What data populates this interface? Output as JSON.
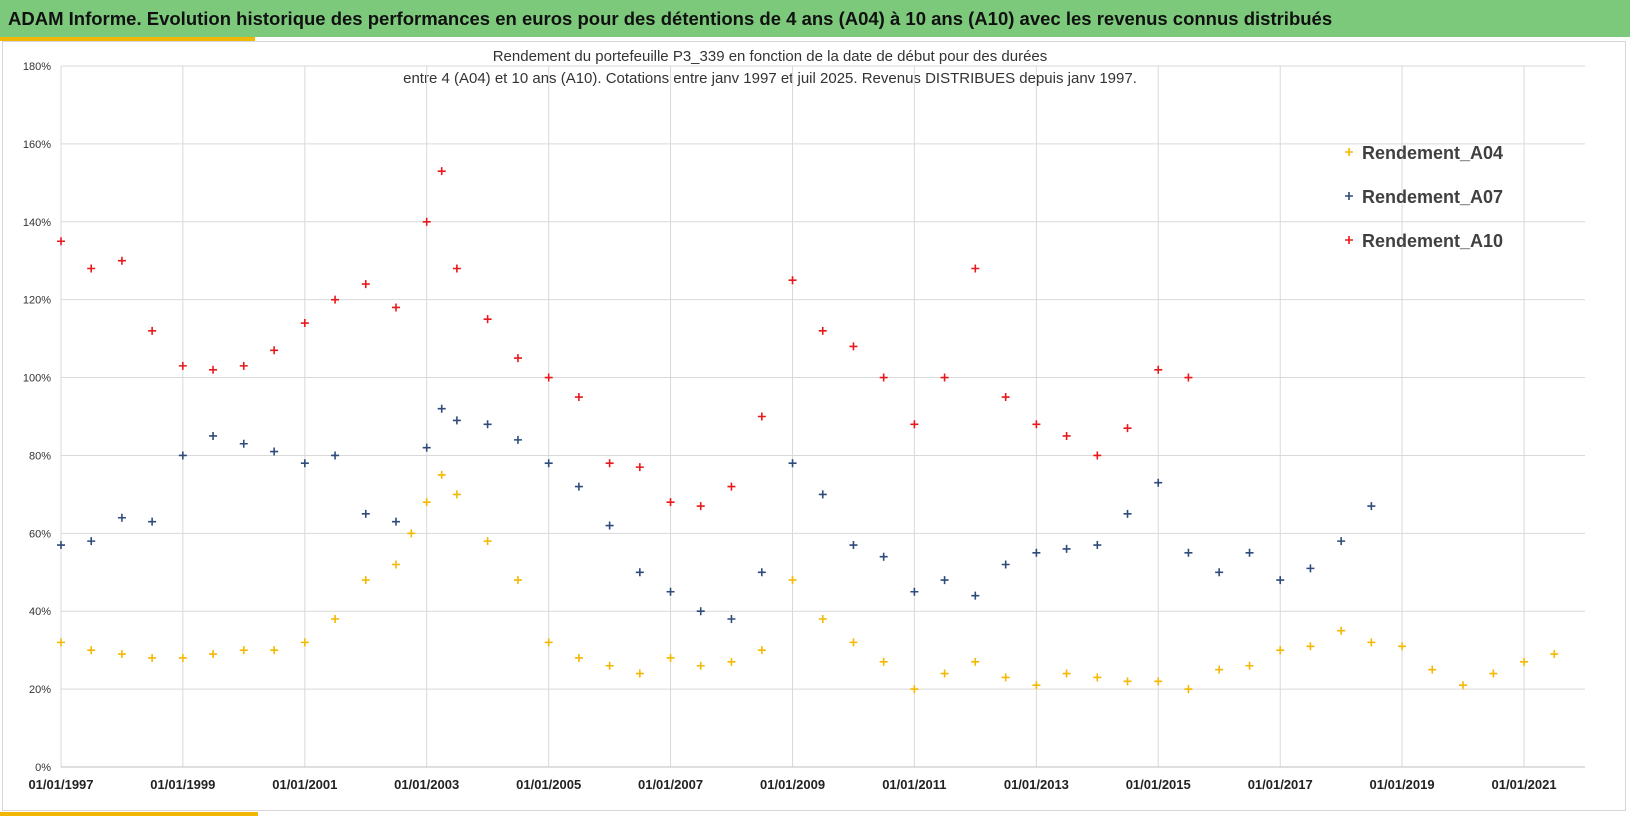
{
  "banner": {
    "title": "ADAM Informe. Evolution historique des performances en euros pour des détentions de 4 ans (A04) à 10 ans (A10) avec les revenus connus distribués"
  },
  "colors": {
    "banner_bg": "#7dc97c",
    "accent": "#f2b705",
    "a04": "#f5b800",
    "a07": "#2f4b7c",
    "a10": "#e8191b"
  },
  "chart_data": {
    "type": "scatter",
    "title_line1": "Rendement du portefeuille P3_339 en fonction de la date de début pour des durées",
    "title_line2": "entre 4 (A04) et 10 ans (A10). Cotations entre janv 1997 et juil 2025. Revenus DISTRIBUES depuis janv 1997.",
    "xlabel": "",
    "ylabel": "",
    "x_type": "date",
    "xlim": [
      "1997-01-01",
      "2022-01-01"
    ],
    "ylim": [
      0,
      180
    ],
    "y_unit": "%",
    "grid": true,
    "marker": "+",
    "legend_position": "top-right",
    "y_ticks": [
      0,
      20,
      40,
      60,
      80,
      100,
      120,
      140,
      160,
      180
    ],
    "y_tick_labels": [
      "0%",
      "20%",
      "40%",
      "60%",
      "80%",
      "100%",
      "120%",
      "140%",
      "160%",
      "180%"
    ],
    "x_ticks": [
      "1997-01-01",
      "1999-01-01",
      "2001-01-01",
      "2003-01-01",
      "2005-01-01",
      "2007-01-01",
      "2009-01-01",
      "2011-01-01",
      "2013-01-01",
      "2015-01-01",
      "2017-01-01",
      "2019-01-01",
      "2021-01-01"
    ],
    "x_tick_labels": [
      "01/01/1997",
      "01/01/1999",
      "01/01/2001",
      "01/01/2003",
      "01/01/2005",
      "01/01/2007",
      "01/01/2009",
      "01/01/2011",
      "01/01/2013",
      "01/01/2015",
      "01/01/2017",
      "01/01/2019",
      "01/01/2021"
    ],
    "series": [
      {
        "name": "Rendement_A04",
        "color": "#f5b800",
        "points": [
          [
            "1997-01-01",
            32
          ],
          [
            "1997-07-01",
            30
          ],
          [
            "1998-01-01",
            29
          ],
          [
            "1998-07-01",
            28
          ],
          [
            "1999-01-01",
            28
          ],
          [
            "1999-07-01",
            29
          ],
          [
            "2000-01-01",
            30
          ],
          [
            "2000-07-01",
            30
          ],
          [
            "2001-01-01",
            32
          ],
          [
            "2001-07-01",
            38
          ],
          [
            "2002-01-01",
            48
          ],
          [
            "2002-07-01",
            52
          ],
          [
            "2002-10-01",
            60
          ],
          [
            "2003-01-01",
            68
          ],
          [
            "2003-04-01",
            75
          ],
          [
            "2003-07-01",
            70
          ],
          [
            "2004-01-01",
            58
          ],
          [
            "2004-07-01",
            48
          ],
          [
            "2005-01-01",
            32
          ],
          [
            "2005-07-01",
            28
          ],
          [
            "2006-01-01",
            26
          ],
          [
            "2006-07-01",
            24
          ],
          [
            "2007-01-01",
            28
          ],
          [
            "2007-07-01",
            26
          ],
          [
            "2008-01-01",
            27
          ],
          [
            "2008-07-01",
            30
          ],
          [
            "2009-01-01",
            48
          ],
          [
            "2009-07-01",
            38
          ],
          [
            "2010-01-01",
            32
          ],
          [
            "2010-07-01",
            27
          ],
          [
            "2011-01-01",
            20
          ],
          [
            "2011-07-01",
            24
          ],
          [
            "2012-01-01",
            27
          ],
          [
            "2012-07-01",
            23
          ],
          [
            "2013-01-01",
            21
          ],
          [
            "2013-07-01",
            24
          ],
          [
            "2014-01-01",
            23
          ],
          [
            "2014-07-01",
            22
          ],
          [
            "2015-01-01",
            22
          ],
          [
            "2015-07-01",
            20
          ],
          [
            "2016-01-01",
            25
          ],
          [
            "2016-07-01",
            26
          ],
          [
            "2017-01-01",
            30
          ],
          [
            "2017-07-01",
            31
          ],
          [
            "2018-01-01",
            35
          ],
          [
            "2018-07-01",
            32
          ],
          [
            "2019-01-01",
            31
          ],
          [
            "2019-07-01",
            25
          ],
          [
            "2020-01-01",
            21
          ],
          [
            "2020-07-01",
            24
          ],
          [
            "2021-01-01",
            27
          ],
          [
            "2021-07-01",
            29
          ]
        ]
      },
      {
        "name": "Rendement_A07",
        "color": "#2f4b7c",
        "points": [
          [
            "1997-01-01",
            57
          ],
          [
            "1997-07-01",
            58
          ],
          [
            "1998-01-01",
            64
          ],
          [
            "1998-07-01",
            63
          ],
          [
            "1999-01-01",
            80
          ],
          [
            "1999-07-01",
            85
          ],
          [
            "2000-01-01",
            83
          ],
          [
            "2000-07-01",
            81
          ],
          [
            "2001-01-01",
            78
          ],
          [
            "2001-07-01",
            80
          ],
          [
            "2002-01-01",
            65
          ],
          [
            "2002-07-01",
            63
          ],
          [
            "2003-01-01",
            82
          ],
          [
            "2003-04-01",
            92
          ],
          [
            "2003-07-01",
            89
          ],
          [
            "2004-01-01",
            88
          ],
          [
            "2004-07-01",
            84
          ],
          [
            "2005-01-01",
            78
          ],
          [
            "2005-07-01",
            72
          ],
          [
            "2006-01-01",
            62
          ],
          [
            "2006-07-01",
            50
          ],
          [
            "2007-01-01",
            45
          ],
          [
            "2007-07-01",
            40
          ],
          [
            "2008-01-01",
            38
          ],
          [
            "2008-07-01",
            50
          ],
          [
            "2009-01-01",
            78
          ],
          [
            "2009-07-01",
            70
          ],
          [
            "2010-01-01",
            57
          ],
          [
            "2010-07-01",
            54
          ],
          [
            "2011-01-01",
            45
          ],
          [
            "2011-07-01",
            48
          ],
          [
            "2012-01-01",
            44
          ],
          [
            "2012-07-01",
            52
          ],
          [
            "2013-01-01",
            55
          ],
          [
            "2013-07-01",
            56
          ],
          [
            "2014-01-01",
            57
          ],
          [
            "2014-07-01",
            65
          ],
          [
            "2015-01-01",
            73
          ],
          [
            "2015-07-01",
            55
          ],
          [
            "2016-01-01",
            50
          ],
          [
            "2016-07-01",
            55
          ],
          [
            "2017-01-01",
            48
          ],
          [
            "2017-07-01",
            51
          ],
          [
            "2018-01-01",
            58
          ],
          [
            "2018-07-01",
            67
          ]
        ]
      },
      {
        "name": "Rendement_A10",
        "color": "#e8191b",
        "points": [
          [
            "1997-01-01",
            135
          ],
          [
            "1997-07-01",
            128
          ],
          [
            "1998-01-01",
            130
          ],
          [
            "1998-07-01",
            112
          ],
          [
            "1999-01-01",
            103
          ],
          [
            "1999-07-01",
            102
          ],
          [
            "2000-01-01",
            103
          ],
          [
            "2000-07-01",
            107
          ],
          [
            "2001-01-01",
            114
          ],
          [
            "2001-07-01",
            120
          ],
          [
            "2002-01-01",
            124
          ],
          [
            "2002-07-01",
            118
          ],
          [
            "2003-01-01",
            140
          ],
          [
            "2003-04-01",
            153
          ],
          [
            "2003-07-01",
            128
          ],
          [
            "2004-01-01",
            115
          ],
          [
            "2004-07-01",
            105
          ],
          [
            "2005-01-01",
            100
          ],
          [
            "2005-07-01",
            95
          ],
          [
            "2006-01-01",
            78
          ],
          [
            "2006-07-01",
            77
          ],
          [
            "2007-01-01",
            68
          ],
          [
            "2007-07-01",
            67
          ],
          [
            "2008-01-01",
            72
          ],
          [
            "2008-07-01",
            90
          ],
          [
            "2009-01-01",
            125
          ],
          [
            "2009-07-01",
            112
          ],
          [
            "2010-01-01",
            108
          ],
          [
            "2010-07-01",
            100
          ],
          [
            "2011-01-01",
            88
          ],
          [
            "2011-07-01",
            100
          ],
          [
            "2012-01-01",
            128
          ],
          [
            "2012-07-01",
            95
          ],
          [
            "2013-01-01",
            88
          ],
          [
            "2013-07-01",
            85
          ],
          [
            "2014-01-01",
            80
          ],
          [
            "2014-07-01",
            87
          ],
          [
            "2015-01-01",
            102
          ],
          [
            "2015-07-01",
            100
          ]
        ]
      }
    ]
  }
}
